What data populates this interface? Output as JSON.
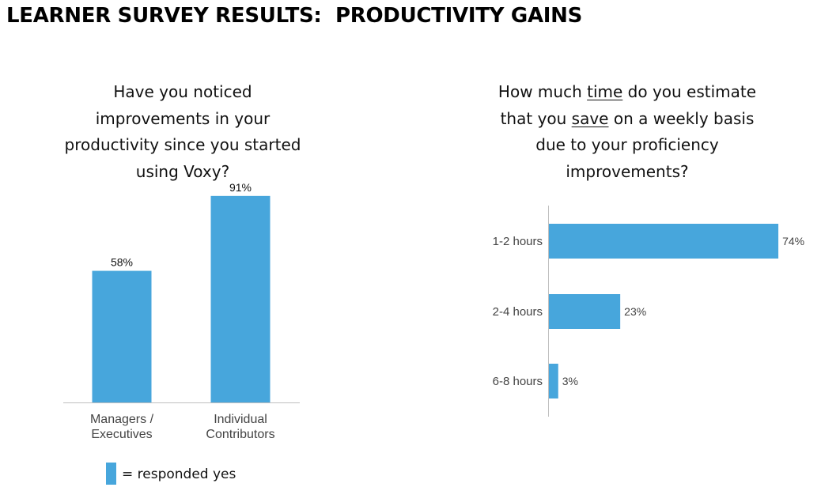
{
  "title": "LEARNER SURVEY RESULTS:  PRODUCTIVITY GAINS",
  "colors": {
    "bar": "#47A6DC",
    "axis": "#bfbfbf",
    "text": "#111111"
  },
  "left_question": [
    "Have you noticed",
    "improvements in your",
    "productivity since you started",
    "using Voxy?"
  ],
  "right_question": [
    [
      {
        "t": "How much ",
        "u": false
      },
      {
        "t": "time",
        "u": true
      },
      {
        "t": " do you estimate",
        "u": false
      }
    ],
    [
      {
        "t": "that you ",
        "u": false
      },
      {
        "t": "save",
        "u": true
      },
      {
        "t": " on a weekly basis",
        "u": false
      }
    ],
    [
      {
        "t": "due to your proficiency",
        "u": false
      }
    ],
    [
      {
        "t": "improvements?",
        "u": false
      }
    ]
  ],
  "legend": {
    "label": "= responded yes"
  },
  "chart_data": [
    {
      "type": "bar",
      "orientation": "vertical",
      "categories": [
        [
          "Managers /",
          "Executives"
        ],
        [
          "Individual",
          "Contributors"
        ]
      ],
      "values": [
        58,
        91
      ],
      "data_labels": [
        "58%",
        "91%"
      ],
      "ylim": [
        0,
        100
      ],
      "grid": false,
      "legend_position": "bottom"
    },
    {
      "type": "bar",
      "orientation": "horizontal",
      "categories": [
        "1-2 hours",
        "2-4 hours",
        "6-8 hours"
      ],
      "values": [
        74,
        23,
        3
      ],
      "data_labels": [
        "74%",
        "23%",
        "3%"
      ],
      "xlim": [
        0,
        100
      ],
      "grid": false
    }
  ]
}
